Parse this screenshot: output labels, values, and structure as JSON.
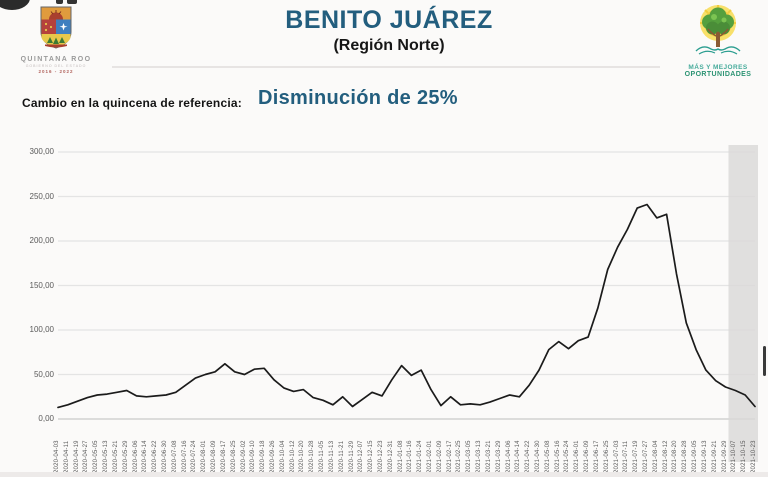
{
  "header": {
    "left_logo": {
      "title": "QUINTANA ROO",
      "subtitle": "GOBIERNO DEL ESTADO",
      "years": "2016 - 2022"
    },
    "title": "BENITO JUÁREZ",
    "subtitle": "(Región Norte)",
    "right_logo": {
      "line1": "MÁS Y MEJORES",
      "line2": "OPORTUNIDADES"
    }
  },
  "reference_change": {
    "label": "Cambio en la quincena de referencia:",
    "value": "Disminución de 25%"
  },
  "colors": {
    "title_blue": "#235e7e",
    "line_color": "#1b1b1b",
    "grid_color": "#e4e4e4",
    "axis_zero_color": "#c9c9c9",
    "band_color": "#d9d8d7",
    "teal": "#2d9474"
  },
  "chart_data": {
    "type": "line",
    "title": "",
    "xlabel": "",
    "ylabel": "",
    "ylim": [
      0,
      300
    ],
    "grid": true,
    "legend": "none",
    "yticks_labels": [
      "300,00",
      "250,00",
      "200,00",
      "150,00",
      "100,00",
      "50,00",
      "0,00"
    ],
    "yticks_values": [
      300,
      250,
      200,
      150,
      100,
      50,
      0
    ],
    "x": [
      "2020-04-03",
      "2020-04-11",
      "2020-04-19",
      "2020-04-27",
      "2020-05-05",
      "2020-05-13",
      "2020-05-21",
      "2020-05-29",
      "2020-06-06",
      "2020-06-14",
      "2020-06-22",
      "2020-06-30",
      "2020-07-08",
      "2020-07-16",
      "2020-07-24",
      "2020-08-01",
      "2020-08-09",
      "2020-08-17",
      "2020-08-25",
      "2020-09-02",
      "2020-09-10",
      "2020-09-18",
      "2020-09-26",
      "2020-10-04",
      "2020-10-12",
      "2020-10-20",
      "2020-10-28",
      "2020-11-05",
      "2020-11-13",
      "2020-11-21",
      "2020-11-29",
      "2020-12-07",
      "2020-12-15",
      "2020-12-23",
      "2020-12-31",
      "2021-01-08",
      "2021-01-16",
      "2021-01-24",
      "2021-02-01",
      "2021-02-09",
      "2021-02-17",
      "2021-02-25",
      "2021-03-05",
      "2021-03-13",
      "2021-03-21",
      "2021-03-29",
      "2021-04-06",
      "2021-04-14",
      "2021-04-22",
      "2021-04-30",
      "2021-05-08",
      "2021-05-16",
      "2021-05-24",
      "2021-06-01",
      "2021-06-09",
      "2021-06-17",
      "2021-06-25",
      "2021-07-03",
      "2021-07-11",
      "2021-07-19",
      "2021-07-27",
      "2021-08-04",
      "2021-08-12",
      "2021-08-20",
      "2021-08-28",
      "2021-09-05",
      "2021-09-13",
      "2021-09-21",
      "2021-09-29",
      "2021-10-07",
      "2021-10-15",
      "2021-10-23"
    ],
    "values": [
      13,
      16,
      20,
      24,
      27,
      28,
      30,
      32,
      26,
      25,
      26,
      27,
      30,
      38,
      46,
      50,
      53,
      62,
      53,
      50,
      56,
      57,
      44,
      35,
      31,
      33,
      24,
      21,
      16,
      25,
      14,
      22,
      30,
      26,
      44,
      60,
      49,
      55,
      33,
      15,
      25,
      16,
      17,
      16,
      19,
      23,
      27,
      25,
      38,
      55,
      78,
      87,
      79,
      88,
      92,
      125,
      168,
      193,
      213,
      237,
      241,
      226,
      230,
      163,
      108,
      78,
      55,
      43,
      36,
      32,
      27,
      14
    ],
    "highlight_band": {
      "start_index": 68.3,
      "note": "shaded reference quincena at right edge"
    }
  }
}
